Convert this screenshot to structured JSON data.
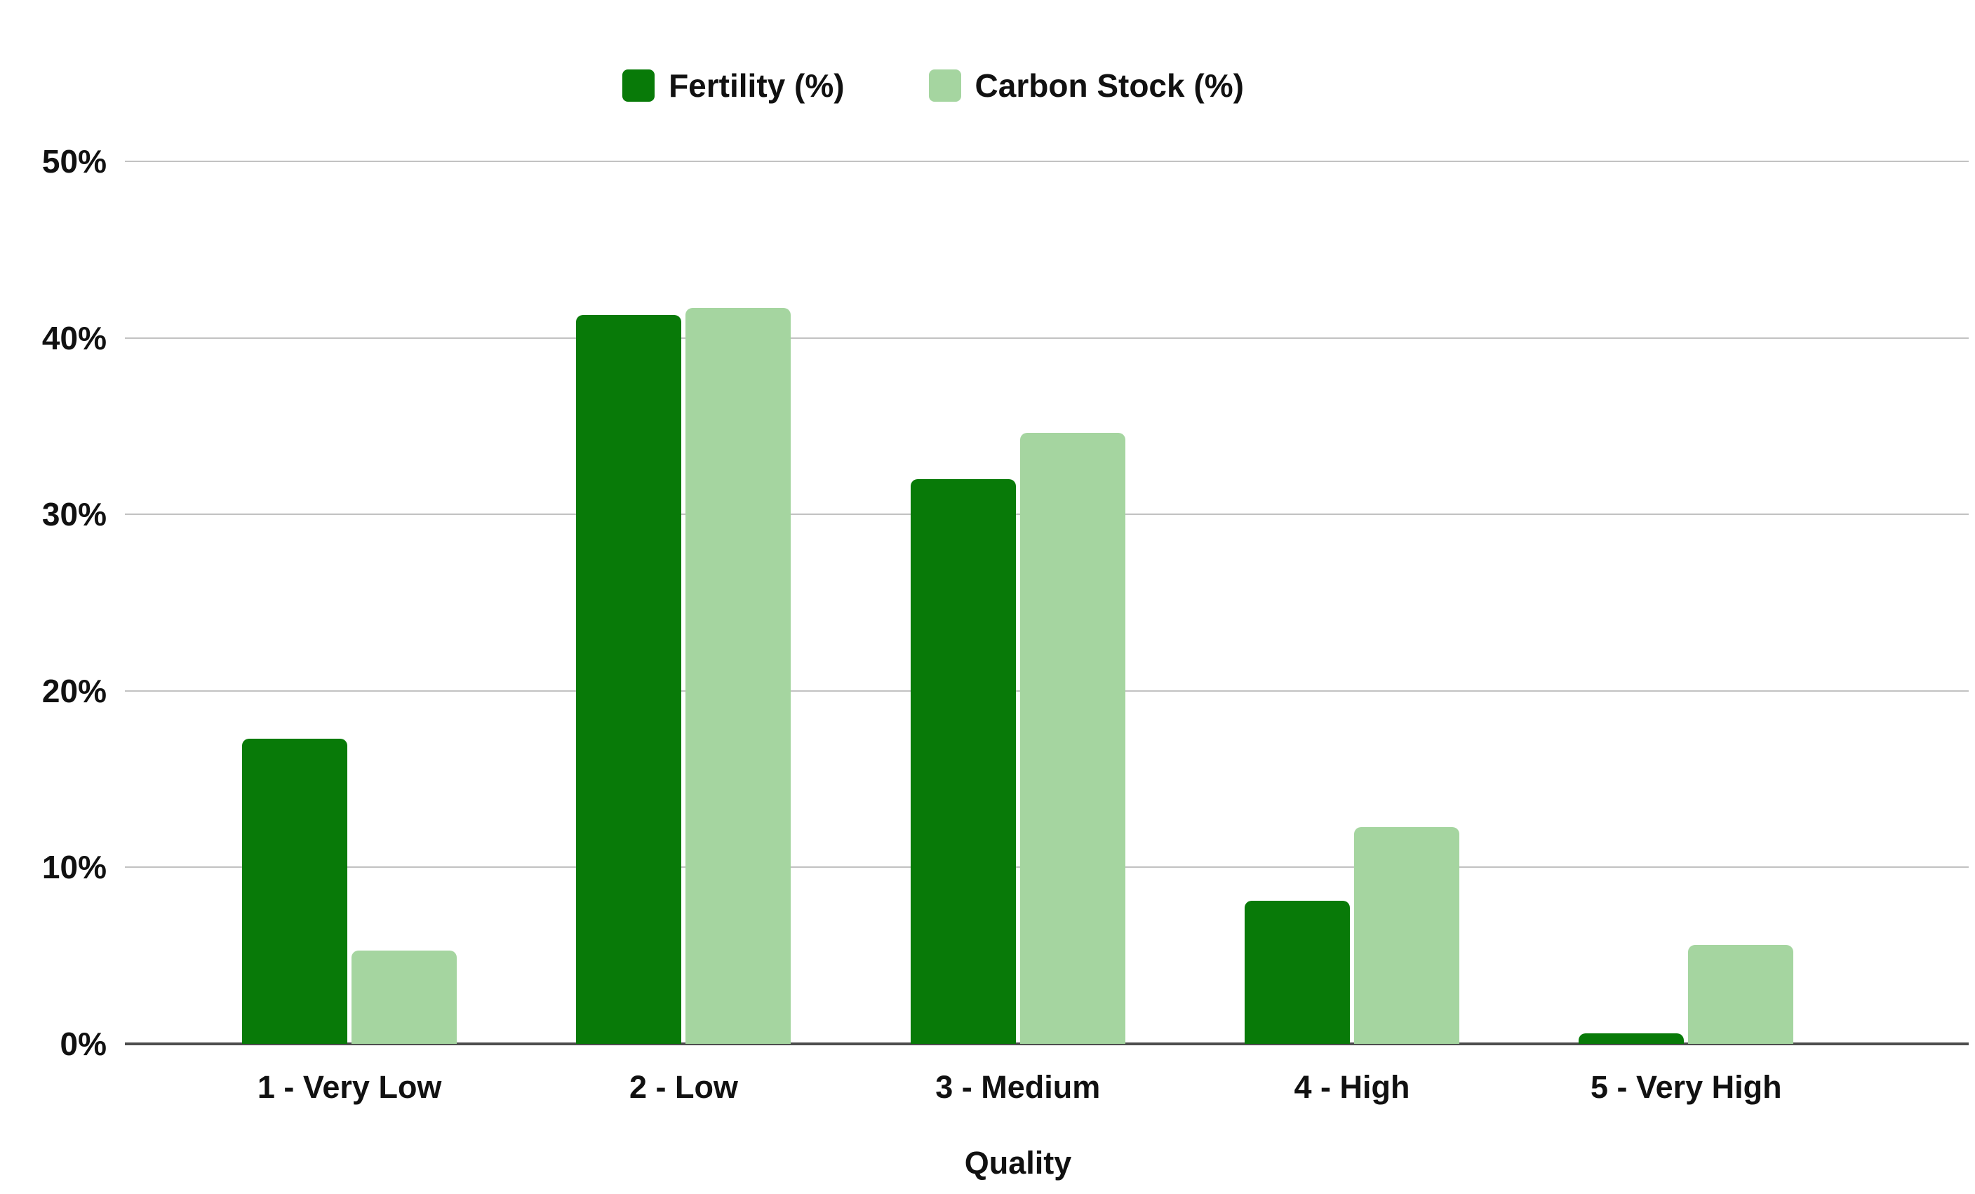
{
  "page": {
    "background": "#ffffff"
  },
  "chart_data": {
    "type": "bar",
    "title": "",
    "categories": [
      "1 - Very Low",
      "2 - Low",
      "3 - Medium",
      "4 - High",
      "5 - Very High"
    ],
    "series": [
      {
        "name": "Fertility (%)",
        "color": "#087a08",
        "values": [
          17.3,
          41.3,
          32.0,
          8.1,
          0.6
        ]
      },
      {
        "name": "Carbon Stock (%)",
        "color": "#a5d5a0",
        "values": [
          5.3,
          41.7,
          34.6,
          12.3,
          5.6
        ]
      }
    ],
    "xlabel": "Quality",
    "ylabel": "",
    "ylim": [
      0,
      50
    ],
    "ytick_labels": [
      "0%",
      "10%",
      "20%",
      "30%",
      "40%",
      "50%"
    ],
    "ytick_values": [
      0,
      10,
      20,
      30,
      40,
      50
    ],
    "grid": true,
    "legend_position": "top-center",
    "gridline_color": "#c2c2c2",
    "axis_line_color": "#4d4d4d",
    "text_color": "#111111"
  }
}
